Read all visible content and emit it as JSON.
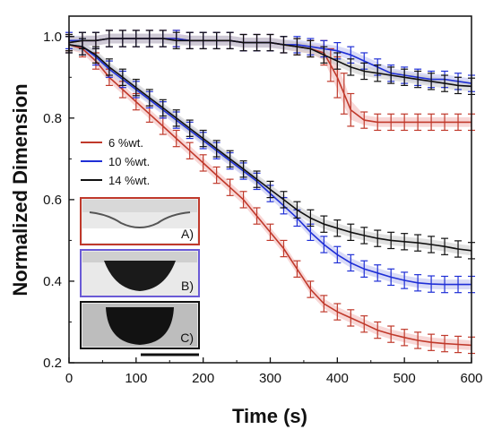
{
  "chart_data": {
    "type": "line",
    "title": "",
    "xlabel": "Time (s)",
    "ylabel": "Normalized Dimension",
    "xlim": [
      0,
      600
    ],
    "ylim": [
      0.2,
      1.05
    ],
    "xticks": [
      "0",
      "100",
      "200",
      "300",
      "400",
      "500",
      "600"
    ],
    "yticks": [
      "0.2",
      "0.4",
      "0.6",
      "0.8",
      "1.0"
    ],
    "grid": false,
    "legend_position": "left-center",
    "error_bars": true,
    "series": [
      {
        "name": "6 %wt.",
        "color": "#c0392b",
        "band_color": "#f3b6b4",
        "groups": [
          {
            "label": "upper",
            "x": [
              0,
              20,
              40,
              60,
              80,
              100,
              120,
              140,
              160,
              180,
              200,
              220,
              240,
              260,
              280,
              300,
              320,
              340,
              360,
              380,
              390,
              400,
              410,
              420,
              440,
              460,
              480,
              500,
              520,
              540,
              560,
              580,
              600
            ],
            "y": [
              0.985,
              0.99,
              0.99,
              0.995,
              0.995,
              0.995,
              0.995,
              0.995,
              0.995,
              0.99,
              0.99,
              0.99,
              0.99,
              0.985,
              0.985,
              0.985,
              0.98,
              0.975,
              0.97,
              0.96,
              0.93,
              0.9,
              0.86,
              0.82,
              0.795,
              0.79,
              0.79,
              0.79,
              0.79,
              0.79,
              0.79,
              0.79,
              0.79
            ],
            "err": [
              0.02,
              0.02,
              0.02,
              0.02,
              0.02,
              0.02,
              0.02,
              0.02,
              0.02,
              0.02,
              0.02,
              0.02,
              0.02,
              0.02,
              0.02,
              0.02,
              0.02,
              0.02,
              0.02,
              0.03,
              0.04,
              0.05,
              0.05,
              0.04,
              0.02,
              0.02,
              0.02,
              0.02,
              0.02,
              0.02,
              0.02,
              0.02,
              0.02
            ]
          },
          {
            "label": "lower",
            "x": [
              0,
              20,
              40,
              60,
              80,
              100,
              120,
              140,
              160,
              180,
              200,
              220,
              240,
              260,
              280,
              300,
              320,
              340,
              360,
              380,
              400,
              420,
              440,
              460,
              480,
              500,
              520,
              540,
              560,
              580,
              600
            ],
            "y": [
              0.98,
              0.97,
              0.94,
              0.9,
              0.87,
              0.84,
              0.81,
              0.78,
              0.75,
              0.72,
              0.69,
              0.66,
              0.63,
              0.6,
              0.56,
              0.52,
              0.48,
              0.43,
              0.38,
              0.345,
              0.325,
              0.31,
              0.295,
              0.28,
              0.27,
              0.262,
              0.255,
              0.25,
              0.247,
              0.245,
              0.243
            ]
          }
        ]
      },
      {
        "name": "10 %wt.",
        "color": "#1f2fd6",
        "band_color": "#b9bdf0",
        "groups": [
          {
            "label": "upper",
            "x": [
              0,
              20,
              40,
              60,
              80,
              100,
              120,
              140,
              160,
              180,
              200,
              220,
              240,
              260,
              280,
              300,
              320,
              340,
              360,
              380,
              400,
              420,
              440,
              460,
              480,
              500,
              520,
              540,
              560,
              580,
              600
            ],
            "y": [
              0.99,
              0.99,
              0.99,
              0.995,
              0.995,
              0.995,
              0.995,
              0.995,
              0.995,
              0.99,
              0.99,
              0.99,
              0.99,
              0.985,
              0.985,
              0.985,
              0.98,
              0.98,
              0.975,
              0.97,
              0.965,
              0.955,
              0.94,
              0.925,
              0.91,
              0.905,
              0.9,
              0.895,
              0.895,
              0.89,
              0.885
            ]
          },
          {
            "label": "lower",
            "x": [
              0,
              20,
              40,
              60,
              80,
              100,
              120,
              140,
              160,
              180,
              200,
              220,
              240,
              260,
              280,
              300,
              320,
              340,
              360,
              380,
              400,
              420,
              440,
              460,
              480,
              500,
              520,
              540,
              560,
              580,
              600
            ],
            "y": [
              0.98,
              0.975,
              0.95,
              0.92,
              0.895,
              0.87,
              0.845,
              0.82,
              0.795,
              0.77,
              0.745,
              0.72,
              0.695,
              0.67,
              0.645,
              0.615,
              0.585,
              0.555,
              0.52,
              0.49,
              0.465,
              0.445,
              0.43,
              0.42,
              0.41,
              0.402,
              0.396,
              0.393,
              0.392,
              0.392,
              0.392
            ]
          }
        ]
      },
      {
        "name": "14 %wt.",
        "color": "#111111",
        "band_color": "#c9c9c9",
        "groups": [
          {
            "label": "upper",
            "x": [
              0,
              20,
              40,
              60,
              80,
              100,
              120,
              140,
              160,
              180,
              200,
              220,
              240,
              260,
              280,
              300,
              320,
              340,
              360,
              380,
              400,
              420,
              440,
              460,
              480,
              500,
              520,
              540,
              560,
              580,
              600
            ],
            "y": [
              0.985,
              0.99,
              0.99,
              0.995,
              0.995,
              0.995,
              0.995,
              0.995,
              0.99,
              0.99,
              0.99,
              0.99,
              0.99,
              0.985,
              0.985,
              0.985,
              0.98,
              0.975,
              0.97,
              0.955,
              0.94,
              0.925,
              0.915,
              0.91,
              0.905,
              0.9,
              0.895,
              0.89,
              0.885,
              0.88,
              0.878
            ]
          },
          {
            "label": "lower",
            "x": [
              0,
              20,
              40,
              60,
              80,
              100,
              120,
              140,
              160,
              180,
              200,
              220,
              240,
              260,
              280,
              300,
              320,
              340,
              360,
              380,
              400,
              420,
              440,
              460,
              480,
              500,
              520,
              540,
              560,
              580,
              600
            ],
            "y": [
              0.98,
              0.975,
              0.955,
              0.925,
              0.9,
              0.875,
              0.85,
              0.825,
              0.8,
              0.775,
              0.75,
              0.725,
              0.7,
              0.675,
              0.65,
              0.625,
              0.6,
              0.575,
              0.555,
              0.54,
              0.53,
              0.52,
              0.512,
              0.505,
              0.5,
              0.497,
              0.494,
              0.49,
              0.485,
              0.479,
              0.475
            ]
          }
        ]
      }
    ]
  },
  "insets": {
    "labels": [
      "A)",
      "B)",
      "C)"
    ],
    "border_colors": [
      "#c0392b",
      "#6a5ad6",
      "#111111"
    ]
  }
}
